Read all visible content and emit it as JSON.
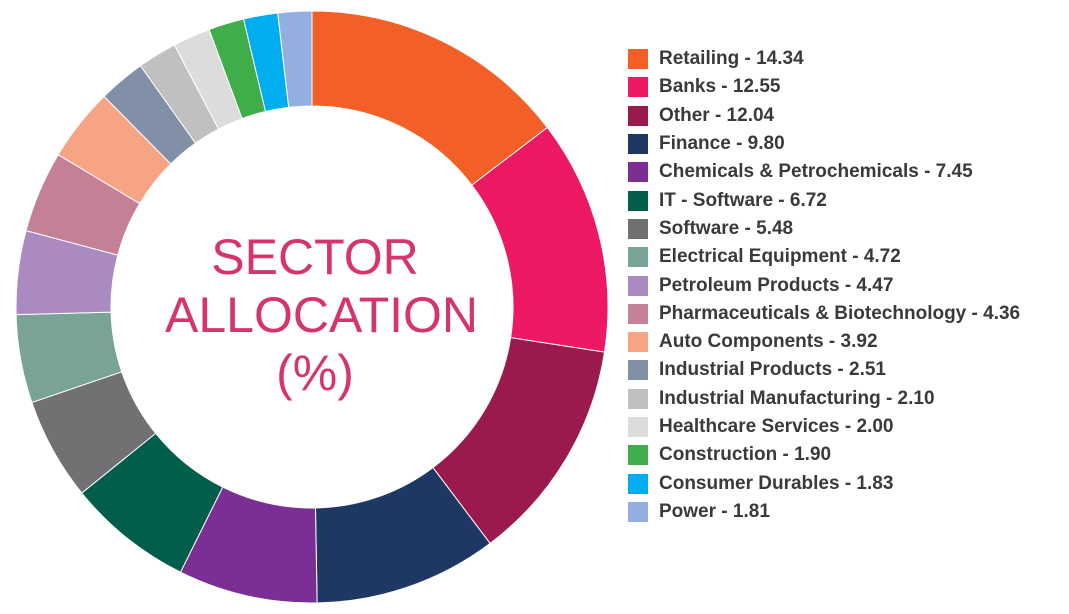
{
  "chart_data": {
    "type": "pie",
    "title": "SECTOR ALLOCATION (%)",
    "title_lines": [
      "SECTOR",
      "ALLOCATION",
      "(%)"
    ],
    "title_color": "#d6356b",
    "legend_position": "right",
    "categories": [
      "Retailing",
      "Banks",
      "Other",
      "Finance",
      "Chemicals & Petrochemicals",
      "IT - Software",
      "Software",
      "Electrical Equipment",
      "Petroleum Products",
      "Pharmaceuticals & Biotechnology",
      "Auto Components",
      "Industrial Products",
      "Industrial Manufacturing",
      "Healthcare Services",
      "Construction",
      "Consumer Durables",
      "Power"
    ],
    "values": [
      14.34,
      12.55,
      12.04,
      9.8,
      7.45,
      6.72,
      5.48,
      4.72,
      4.47,
      4.36,
      3.92,
      2.51,
      2.1,
      2.0,
      1.9,
      1.83,
      1.81
    ],
    "labels": [
      "Retailing - 14.34",
      "Banks - 12.55",
      "Other - 12.04",
      "Finance - 9.80",
      "Chemicals & Petrochemicals - 7.45",
      "IT - Software - 6.72",
      "Software - 5.48",
      "Electrical Equipment - 4.72",
      "Petroleum Products - 4.47",
      "Pharmaceuticals & Biotechnology - 4.36",
      "Auto Components - 3.92",
      "Industrial Products - 2.51",
      "Industrial Manufacturing - 2.10",
      "Healthcare Services - 2.00",
      "Construction - 1.90",
      "Consumer Durables - 1.83",
      "Power - 1.81"
    ],
    "colors": [
      "#f26027",
      "#ec1864",
      "#9a1a4e",
      "#1e3763",
      "#7b2f95",
      "#005e4b",
      "#717173",
      "#7aa398",
      "#ab8ac2",
      "#c48095",
      "#f7a485",
      "#8190a7",
      "#c0c0c0",
      "#dcdcdc",
      "#3fad49",
      "#00aeef",
      "#93aee0"
    ]
  }
}
